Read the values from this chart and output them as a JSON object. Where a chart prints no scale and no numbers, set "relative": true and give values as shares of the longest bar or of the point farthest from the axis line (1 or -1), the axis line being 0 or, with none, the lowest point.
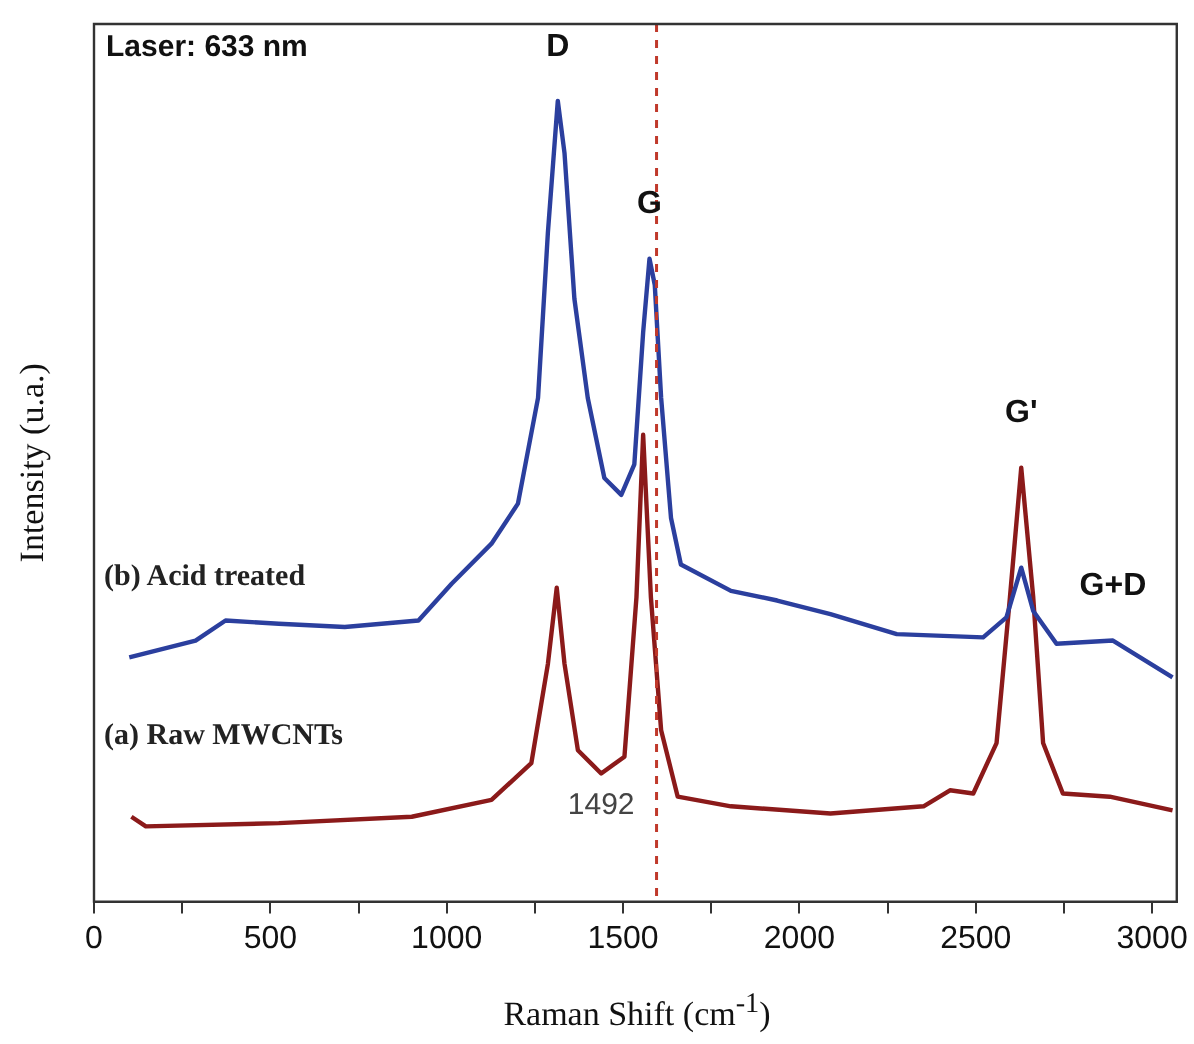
{
  "chart_data": {
    "type": "line",
    "relative": true,
    "xlabel": "Raman Shift (cm$^{-1}$)",
    "ylabel": "Intensity (u.a.)",
    "xlim": [
      0,
      3070
    ],
    "xticks": [
      0,
      {
        "value": 250,
        "label": null
      },
      500,
      {
        "value": 750,
        "label": null
      },
      1000,
      {
        "value": 1250,
        "label": null
      },
      1500,
      {
        "value": 1750,
        "label": null
      },
      2000,
      {
        "value": 2250,
        "label": null
      },
      2500,
      {
        "value": 2750,
        "label": null
      },
      3000
    ],
    "grid": false,
    "legend": false,
    "marker": "none",
    "line_style": "solid",
    "series": [
      {
        "name": "(b) Acid treated",
        "color": "#2b3f9e",
        "x": [
          100,
          288,
          373,
          524,
          711,
          920,
          1014,
          1127,
          1202,
          1259,
          1287,
          1315,
          1334,
          1362,
          1400,
          1447,
          1495,
          1532,
          1557,
          1575,
          1590,
          1608,
          1636,
          1664,
          1806,
          1937,
          2088,
          2276,
          2521,
          2587,
          2629,
          2663,
          2729,
          2889,
          3058
        ],
        "values": [
          0.305,
          0.326,
          0.351,
          0.347,
          0.343,
          0.351,
          0.397,
          0.447,
          0.497,
          0.629,
          0.836,
          1,
          0.935,
          0.753,
          0.629,
          0.529,
          0.508,
          0.546,
          0.711,
          0.803,
          0.77,
          0.629,
          0.479,
          0.421,
          0.388,
          0.376,
          0.359,
          0.334,
          0.33,
          0.355,
          0.417,
          0.363,
          0.322,
          0.326,
          0.28
        ]
      },
      {
        "name": "(a) Raw MWCNTs",
        "color": "#8b1a1a",
        "x": [
          106,
          147,
          524,
          901,
          1127,
          1240,
          1287,
          1312,
          1334,
          1372,
          1438,
          1504,
          1538,
          1557,
          1579,
          1608,
          1655,
          1806,
          2088,
          2352,
          2427,
          2493,
          2559,
          2597,
          2629,
          2663,
          2691,
          2747,
          2880,
          3058
        ],
        "values": [
          0.106,
          0.094,
          0.098,
          0.106,
          0.127,
          0.173,
          0.297,
          0.392,
          0.297,
          0.189,
          0.16,
          0.181,
          0.38,
          0.583,
          0.38,
          0.214,
          0.131,
          0.119,
          0.11,
          0.119,
          0.139,
          0.135,
          0.198,
          0.38,
          0.542,
          0.38,
          0.198,
          0.135,
          0.131,
          0.114
        ]
      }
    ],
    "ref_lines": [
      {
        "axis": "x",
        "value": 1595,
        "color": "#c0392b",
        "line_style": "dashed"
      }
    ],
    "annotations": [
      "Laser: 633 nm",
      {
        "text": "D",
        "x": 1315,
        "y": 1
      },
      {
        "text": "G",
        "x": 1575,
        "y": 0.803
      },
      {
        "text": "G'",
        "x": 2629,
        "y": 0.542
      },
      {
        "text": "G+D",
        "x": 2889,
        "y": 0.326
      },
      {
        "text": "1492",
        "x": 1438,
        "y": 0.16
      }
    ]
  }
}
